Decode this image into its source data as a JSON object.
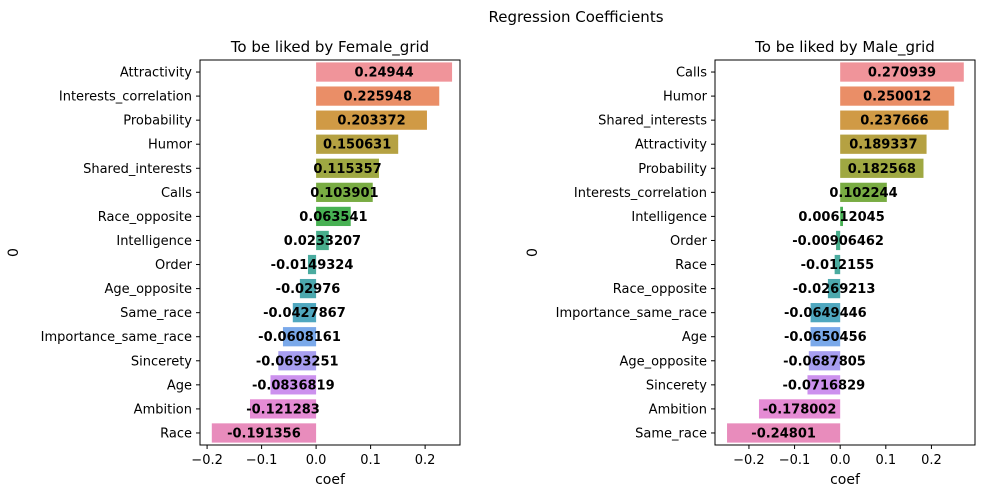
{
  "suptitle": "Regression Coefficients",
  "chart_data": [
    {
      "type": "bar",
      "orientation": "horizontal",
      "title": "To be liked by Female_grid",
      "xlabel": "coef",
      "ylabel": "0",
      "xlim": [
        -0.213,
        0.264
      ],
      "xticks": [
        -0.2,
        -0.1,
        0.0,
        0.1,
        0.2
      ],
      "xtick_labels": [
        "−0.2",
        "−0.1",
        "0.0",
        "0.1",
        "0.2"
      ],
      "grid": false,
      "categories": [
        "Attractivity",
        "Interests_correlation",
        "Probability",
        "Humor",
        "Shared_interests",
        "Calls",
        "Race_opposite",
        "Intelligence",
        "Order",
        "Age_opposite",
        "Same_race",
        "Importance_same_race",
        "Sincerety",
        "Age",
        "Ambition",
        "Race"
      ],
      "values": [
        0.24944,
        0.225948,
        0.203372,
        0.150631,
        0.115357,
        0.103901,
        0.063541,
        0.0233207,
        -0.0149324,
        -0.02976,
        -0.0427867,
        -0.0608161,
        -0.0693251,
        -0.0836819,
        -0.121283,
        -0.191356
      ],
      "value_labels": [
        "0.24944",
        "0.225948",
        "0.203372",
        "0.150631",
        "0.115357",
        "0.103901",
        "0.063541",
        "0.0233207",
        "-0.0149324",
        "-0.02976",
        "-0.0427867",
        "-0.0608161",
        "-0.0693251",
        "-0.0836819",
        "-0.121283",
        "-0.191356"
      ],
      "colors": [
        "#f0949a",
        "#ea8e67",
        "#d09a45",
        "#b5a142",
        "#9fa842",
        "#79ac43",
        "#47b153",
        "#48ae8c",
        "#4aab9f",
        "#4ca8ad",
        "#4fa7bf",
        "#7aa9ea",
        "#a79ef0",
        "#cc91ee",
        "#e58bd4",
        "#e88cbc"
      ]
    },
    {
      "type": "bar",
      "orientation": "horizontal",
      "title": "To be liked by Male_grid",
      "xlabel": "coef",
      "ylabel": "0",
      "xlim": [
        -0.2744,
        0.2955
      ],
      "xticks": [
        -0.2,
        -0.1,
        0.0,
        0.1,
        0.2
      ],
      "xtick_labels": [
        "−0.2",
        "−0.1",
        "0.0",
        "0.1",
        "0.2"
      ],
      "grid": false,
      "categories": [
        "Calls",
        "Humor",
        "Shared_interests",
        "Attractivity",
        "Probability",
        "Interests_correlation",
        "Intelligence",
        "Order",
        "Race",
        "Race_opposite",
        "Importance_same_race",
        "Age",
        "Age_opposite",
        "Sincerety",
        "Ambition",
        "Same_race"
      ],
      "values": [
        0.270939,
        0.250012,
        0.237666,
        0.189337,
        0.182568,
        0.102244,
        0.00612045,
        -0.00906462,
        -0.012155,
        -0.0269213,
        -0.0649446,
        -0.0650456,
        -0.0687805,
        -0.0716829,
        -0.178002,
        -0.24801
      ],
      "value_labels": [
        "0.270939",
        "0.250012",
        "0.237666",
        "0.189337",
        "0.182568",
        "0.102244",
        "0.00612045",
        "-0.00906462",
        "-0.012155",
        "-0.0269213",
        "-0.0649446",
        "-0.0650456",
        "-0.0687805",
        "-0.0716829",
        "-0.178002",
        "-0.24801"
      ],
      "colors": [
        "#f0949a",
        "#ea8e67",
        "#d09a45",
        "#b5a142",
        "#9fa842",
        "#79ac43",
        "#47b153",
        "#48ae8c",
        "#4aab9f",
        "#4ca8ad",
        "#4fa7bf",
        "#7aa9ea",
        "#a79ef0",
        "#cc91ee",
        "#e58bd4",
        "#e88cbc"
      ]
    }
  ]
}
